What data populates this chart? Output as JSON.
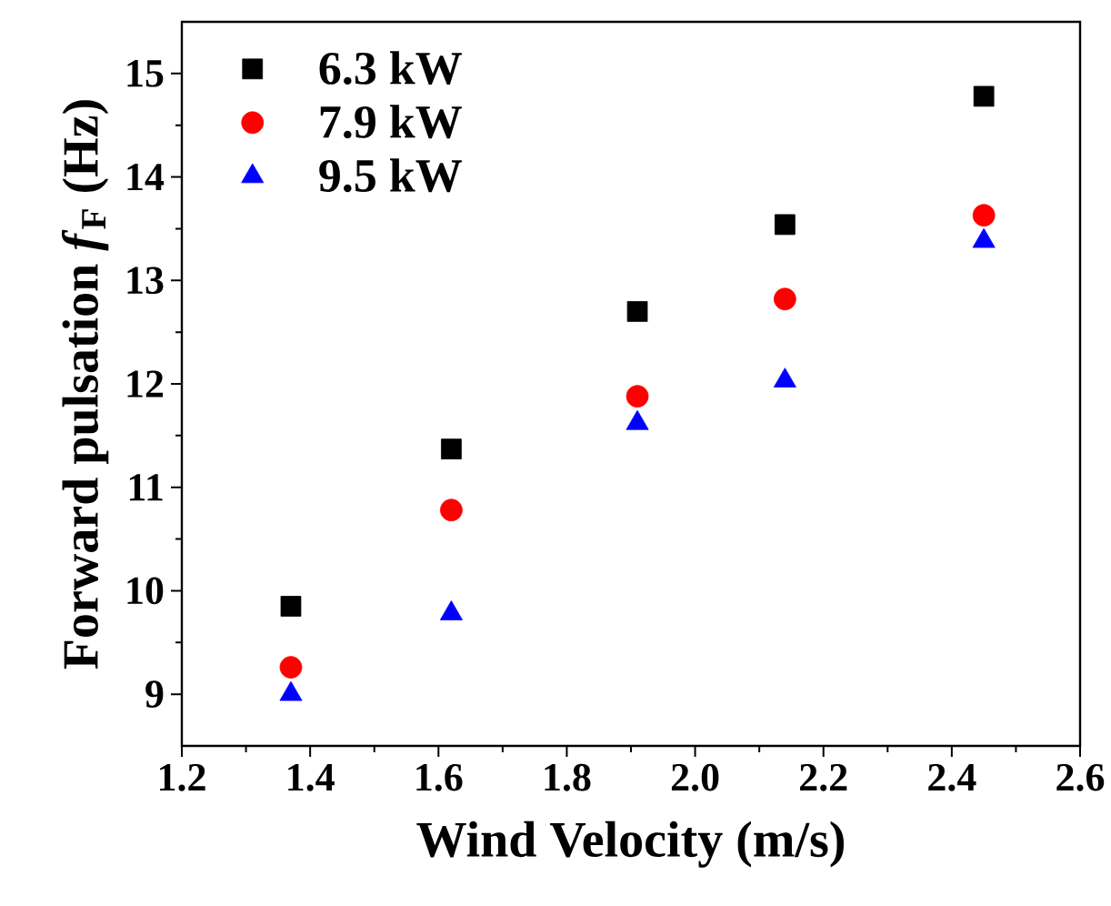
{
  "chart_data": {
    "type": "scatter",
    "xlabel": "Wind Velocity (m/s)",
    "ylabel": "Forward pulsation *f*$_{F}$ (Hz)",
    "xlim": [
      1.2,
      2.6
    ],
    "xticks": [
      1.2,
      1.4,
      1.6,
      1.8,
      {
        "value": 2.0,
        "label": "2.0"
      },
      2.2,
      2.4,
      2.6
    ],
    "ylim": [
      8.5,
      15.5
    ],
    "yticks": [
      9,
      10,
      11,
      12,
      13,
      14,
      15
    ],
    "grid": false,
    "legend": "top left",
    "series": [
      {
        "name": "6.3 kW",
        "color": "#000000",
        "marker": "square",
        "x": [
          1.37,
          1.62,
          1.91,
          2.14,
          2.45
        ],
        "values": [
          9.85,
          11.37,
          12.7,
          13.54,
          14.78
        ]
      },
      {
        "name": "7.9 kW",
        "color": "#ff0000",
        "marker": "circle",
        "x": [
          1.37,
          1.62,
          1.91,
          2.14,
          2.45
        ],
        "values": [
          9.26,
          10.78,
          11.88,
          12.82,
          13.63
        ]
      },
      {
        "name": "9.5 kW",
        "color": "#0000ff",
        "marker": "triangle",
        "x": [
          1.37,
          1.62,
          1.91,
          2.14,
          2.45
        ],
        "values": [
          9.0,
          9.78,
          11.62,
          12.03,
          13.38
        ]
      }
    ]
  }
}
